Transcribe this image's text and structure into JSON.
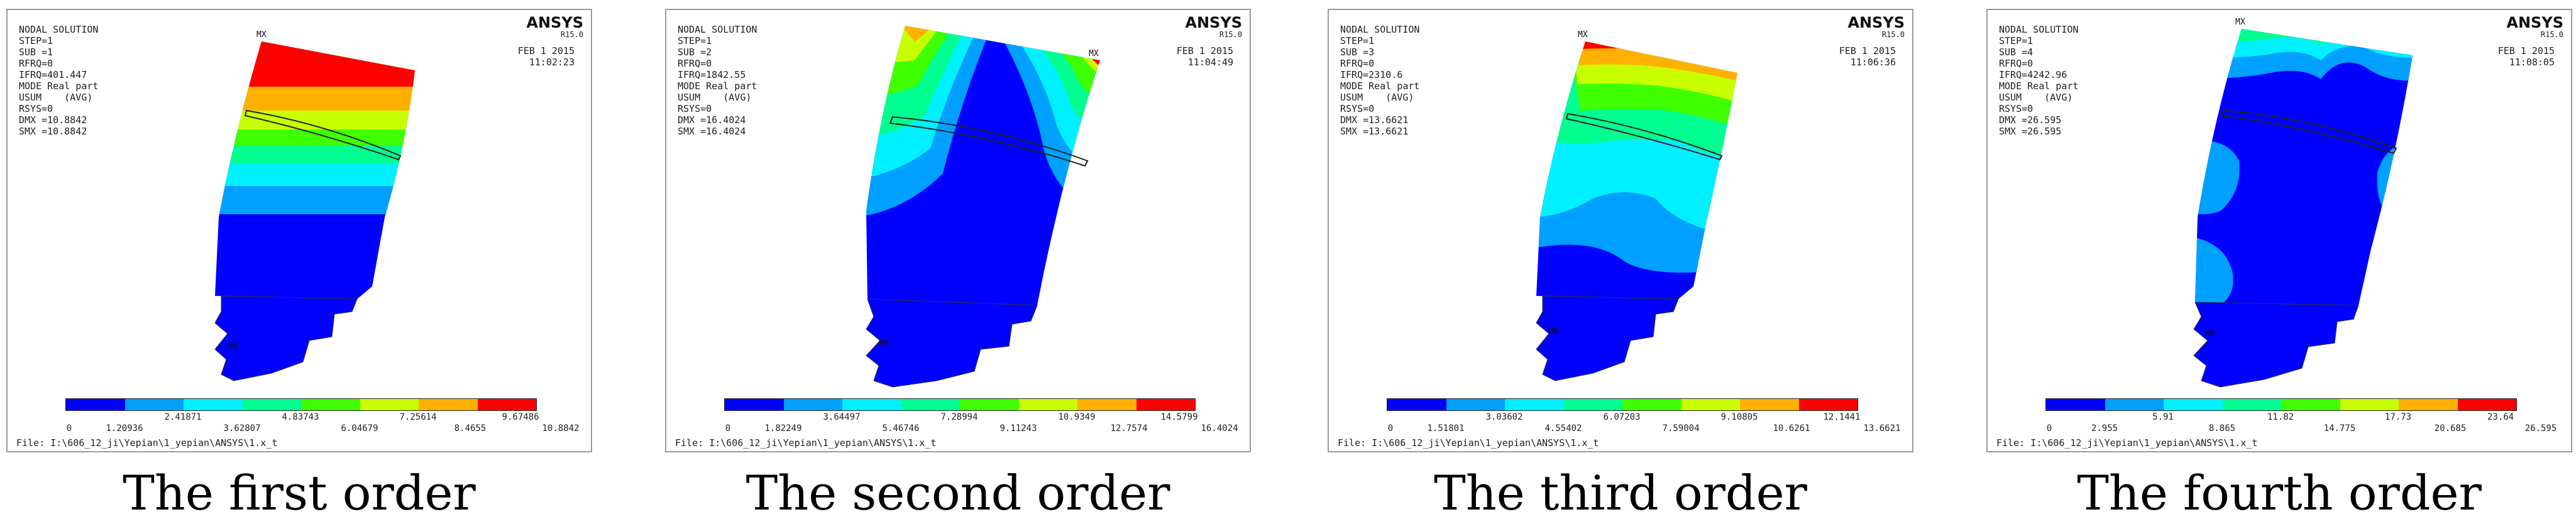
{
  "colors": [
    "#0000ff",
    "#00a0ff",
    "#00f0ff",
    "#00ff90",
    "#40ff00",
    "#c8ff00",
    "#ffb000",
    "#ff0000"
  ],
  "panels": [
    {
      "caption": "The first order",
      "header": [
        "NODAL SOLUTION",
        "STEP=1",
        "SUB =1",
        "RFRQ=0",
        "IFRQ=401.447",
        "MODE Real part",
        "USUM    (AVG)",
        "RSYS=0",
        "DMX =10.8842",
        "SMX =10.8842"
      ],
      "ansys": "ANSYS",
      "release": "R15.0",
      "date": "FEB  1 2015",
      "time": "11:02:23",
      "mx": "MX",
      "mn": "MN",
      "ticks_top": [
        "2.41871",
        "4.83743",
        "7.25614",
        "9.67486"
      ],
      "ticks_bottom": [
        "0",
        "1.20936",
        "3.62807",
        "6.04679",
        "8.4655",
        "10.8842"
      ],
      "file": "File: I:\\606_12_ji\\Yepian\\1_yepian\\ANSYS\\1.x_t"
    },
    {
      "caption": "The second order",
      "header": [
        "NODAL SOLUTION",
        "STEP=1",
        "SUB =2",
        "RFRQ=0",
        "IFRQ=1842.55",
        "MODE Real part",
        "USUM    (AVG)",
        "RSYS=0",
        "DMX =16.4024",
        "SMX =16.4024"
      ],
      "ansys": "ANSYS",
      "release": "R15.0",
      "date": "FEB  1 2015",
      "time": "11:04:49",
      "mx": "MX",
      "mn": "MN",
      "ticks_top": [
        "3.64497",
        "7.28994",
        "10.9349",
        "14.5799"
      ],
      "ticks_bottom": [
        "0",
        "1.82249",
        "5.46746",
        "9.11243",
        "12.7574",
        "16.4024"
      ],
      "file": "File: I:\\606_12_ji\\Yepian\\1_yepian\\ANSYS\\1.x_t"
    },
    {
      "caption": "The third order",
      "header": [
        "NODAL SOLUTION",
        "STEP=1",
        "SUB =3",
        "RFRQ=0",
        "IFRQ=2310.6",
        "MODE Real part",
        "USUM    (AVG)",
        "RSYS=0",
        "DMX =13.6621",
        "SMX =13.6621"
      ],
      "ansys": "ANSYS",
      "release": "R15.0",
      "date": "FEB  1 2015",
      "time": "11:06:36",
      "mx": "MX",
      "mn": "MN",
      "ticks_top": [
        "3.03602",
        "6.07203",
        "9.10805",
        "12.1441"
      ],
      "ticks_bottom": [
        "0",
        "1.51801",
        "4.55402",
        "7.59004",
        "10.6261",
        "13.6621"
      ],
      "file": "File: I:\\606_12_ji\\Yepian\\1_yepian\\ANSYS\\1.x_t"
    },
    {
      "caption": "The fourth order",
      "header": [
        "NODAL SOLUTION",
        "STEP=1",
        "SUB =4",
        "RFRQ=0",
        "IFRQ=4242.96",
        "MODE Real part",
        "USUM    (AVG)",
        "RSYS=0",
        "DMX =26.595",
        "SMX =26.595"
      ],
      "ansys": "ANSYS",
      "release": "R15.0",
      "date": "FEB  1 2015",
      "time": "11:08:05",
      "mx": "MX",
      "mn": "MN",
      "ticks_top": [
        "5.91",
        "11.82",
        "17.73",
        "23.64"
      ],
      "ticks_bottom": [
        "0",
        "2.955",
        "8.865",
        "14.775",
        "20.685",
        "26.595"
      ],
      "file": "File: I:\\606_12_ji\\Yepian\\1_yepian\\ANSYS\\1.x_t"
    }
  ]
}
